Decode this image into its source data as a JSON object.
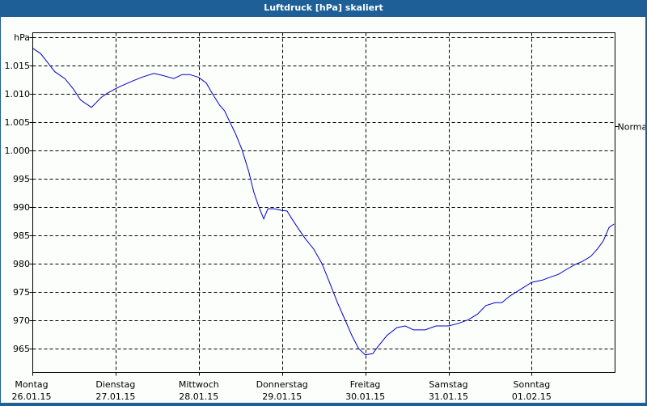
{
  "window": {
    "title": "Luftdruck [hPa] skaliert"
  },
  "colors": {
    "titlebar": "#1d5f96",
    "background": "#fcfefc",
    "line": "#0000c8",
    "grid": "#000000"
  },
  "chart_data": {
    "type": "line",
    "title": "Luftdruck [hPa] skaliert",
    "xlabel": "",
    "ylabel": "hPa",
    "ylim": [
      962,
      1020
    ],
    "grid": true,
    "grid_style": "dashed",
    "right_annotation": {
      "label": "Normal",
      "value": 1005
    },
    "y_ticks": [
      "hPa",
      "1.015",
      "1.010",
      "1.005",
      "1.000",
      "995",
      "990",
      "985",
      "980",
      "975",
      "970",
      "965"
    ],
    "y_tick_values": [
      1020,
      1015,
      1010,
      1005,
      1000,
      995,
      990,
      985,
      980,
      975,
      970,
      965
    ],
    "x_ticks": [
      {
        "day": "Montag",
        "date": "26.01.15"
      },
      {
        "day": "Dienstag",
        "date": "27.01.15"
      },
      {
        "day": "Mittwoch",
        "date": "28.01.15"
      },
      {
        "day": "Donnerstag",
        "date": "29.01.15"
      },
      {
        "day": "Freitag",
        "date": "30.01.15"
      },
      {
        "day": "Samstag",
        "date": "31.01.15"
      },
      {
        "day": "Sonntag",
        "date": "01.02.15"
      }
    ],
    "series": [
      {
        "name": "Luftdruck",
        "x_days": [
          0.0,
          0.1,
          0.19,
          0.27,
          0.39,
          0.49,
          0.58,
          0.71,
          0.83,
          0.9,
          1.0,
          1.07,
          1.21,
          1.31,
          1.46,
          1.55,
          1.65,
          1.7,
          1.8,
          1.89,
          2.0,
          2.09,
          2.16,
          2.25,
          2.31,
          2.37,
          2.44,
          2.52,
          2.6,
          2.66,
          2.72,
          2.78,
          2.83,
          2.91,
          3.0,
          3.06,
          3.12,
          3.2,
          3.28,
          3.38,
          3.48,
          3.57,
          3.67,
          3.76,
          3.84,
          3.92,
          4.0,
          4.09,
          4.15,
          4.26,
          4.38,
          4.48,
          4.58,
          4.72,
          4.85,
          5.0,
          5.11,
          5.24,
          5.35,
          5.45,
          5.56,
          5.64,
          5.74,
          5.86,
          6.0,
          6.13,
          6.22,
          6.32,
          6.42,
          6.53,
          6.61,
          6.71,
          6.79,
          6.86,
          6.93,
          6.99
        ],
        "values": [
          1018.1,
          1017.1,
          1015.4,
          1013.9,
          1012.7,
          1010.9,
          1008.9,
          1007.6,
          1009.4,
          1010.1,
          1010.9,
          1011.4,
          1012.3,
          1012.9,
          1013.6,
          1013.3,
          1012.9,
          1012.7,
          1013.4,
          1013.4,
          1012.9,
          1011.9,
          1010.1,
          1008.0,
          1007.0,
          1005.1,
          1003.0,
          1000.1,
          996.3,
          992.7,
          990.1,
          987.9,
          989.7,
          989.7,
          989.4,
          989.3,
          987.9,
          986.1,
          984.4,
          982.6,
          980.0,
          976.7,
          973.0,
          970.0,
          967.3,
          965.0,
          963.9,
          964.1,
          965.3,
          967.3,
          968.7,
          969.0,
          968.3,
          968.3,
          969.0,
          969.0,
          969.4,
          970.1,
          971.1,
          972.6,
          973.1,
          973.1,
          974.3,
          975.4,
          976.7,
          977.1,
          977.6,
          978.1,
          979.0,
          979.9,
          980.4,
          981.3,
          982.6,
          984.0,
          986.4,
          987.0
        ]
      }
    ]
  }
}
